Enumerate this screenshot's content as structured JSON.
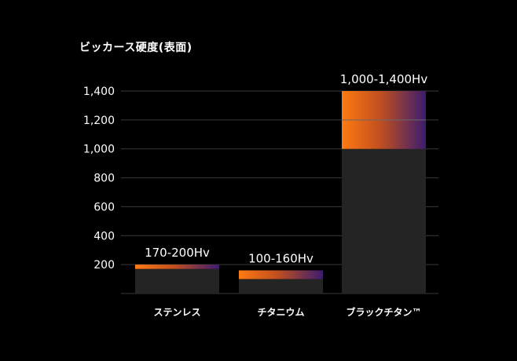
{
  "chart_data": {
    "type": "bar",
    "title": "ビッカース硬度(表面)",
    "categories": [
      "ステンレス",
      "チタニウム",
      "ブラックチタン™"
    ],
    "ranges": [
      {
        "min": 170,
        "max": 200,
        "label": "170-200Hv"
      },
      {
        "min": 100,
        "max": 160,
        "label": "100-160Hv"
      },
      {
        "min": 1000,
        "max": 1400,
        "label": "1,000-1,400Hv"
      }
    ],
    "y_ticks": [
      "200",
      "400",
      "600",
      "800",
      "1,000",
      "1,200",
      "1,400"
    ],
    "ylim": [
      0,
      1400
    ],
    "grid": true,
    "colors": {
      "background": "#000000",
      "base_bar": "#242424",
      "range_start": "#ff7a12",
      "range_end": "#3c1c6e",
      "grid": "#3a3a3a",
      "text": "#ffffff"
    }
  }
}
